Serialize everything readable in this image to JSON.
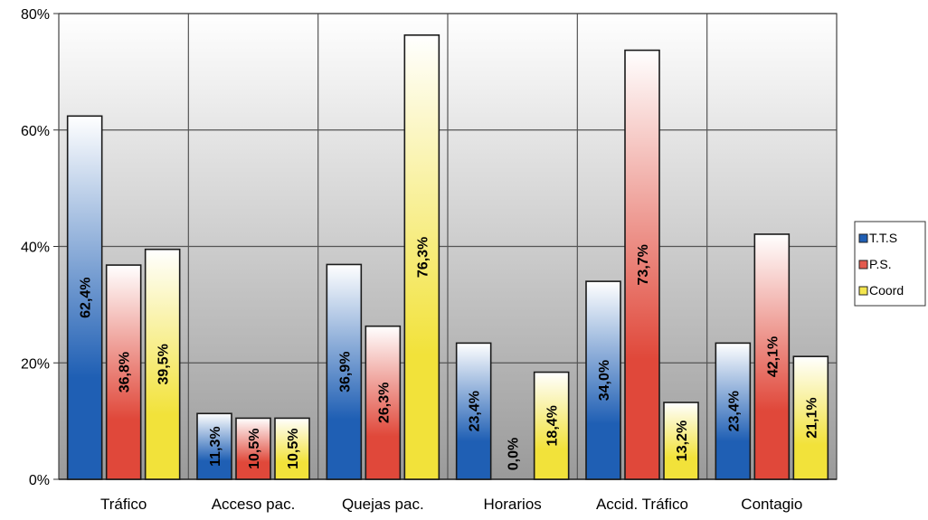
{
  "chart_data": {
    "type": "bar",
    "categories": [
      "Tráfico",
      "Acceso pac.",
      "Quejas pac.",
      "Horarios",
      "Accid. Tráfico",
      "Contagio"
    ],
    "series": [
      {
        "name": "T.T.S",
        "values": [
          62.4,
          11.3,
          36.9,
          23.4,
          34.0,
          23.4
        ],
        "labels": [
          "62,4%",
          "11,3%",
          "36,9%",
          "23,4%",
          "34,0%",
          "23,4%"
        ],
        "color": "#1f5fb4"
      },
      {
        "name": "P.S.",
        "values": [
          36.8,
          10.5,
          26.3,
          0.0,
          73.7,
          42.1
        ],
        "labels": [
          "36,8%",
          "10,5%",
          "26,3%",
          "0,0%",
          "73,7%",
          "42,1%"
        ],
        "color": "#e0483a"
      },
      {
        "name": "Coord",
        "values": [
          39.5,
          10.5,
          76.3,
          18.4,
          13.2,
          21.1
        ],
        "labels": [
          "39,5%",
          "10,5%",
          "76,3%",
          "18,4%",
          "13,2%",
          "21,1%"
        ],
        "color": "#f2e23a"
      }
    ],
    "y_ticks": [
      "0%",
      "20%",
      "40%",
      "60%",
      "80%"
    ],
    "ylim": [
      0,
      80
    ],
    "grid": true,
    "legend_position": "right"
  }
}
